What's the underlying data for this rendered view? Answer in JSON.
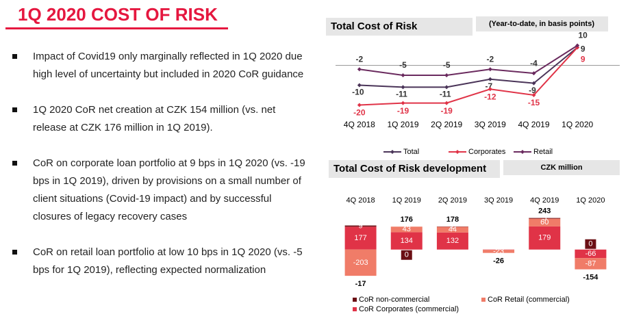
{
  "title": "1Q 2020 COST OF RISK",
  "bullets": [
    "Impact of Covid19 only marginally reflected in 1Q 2020 due high level of uncertainty but included in 2020 CoR guidance",
    "1Q 2020 CoR net creation at CZK 154 million (vs. net release at CZK 176 million in 1Q 2019).",
    "CoR on corporate loan portfolio at 9 bps in 1Q 2020 (vs. -19 bps in 1Q 2019), driven by provisions on a small number of client situations (Covid-19 impact) and by successful closures of legacy recovery cases",
    "CoR on retail loan portfolio at low 10 bps in 1Q 2020 (vs. -5 bps for 1Q 2019), reflecting expected normalization"
  ],
  "chart_data": [
    {
      "type": "line",
      "title": "Total Cost of Risk",
      "subtitle": "(Year-to-date, in basis points)",
      "categories": [
        "4Q 2018",
        "1Q 2019",
        "2Q 2019",
        "3Q 2019",
        "4Q 2019",
        "1Q 2020"
      ],
      "ylim": [
        -25,
        15
      ],
      "legend": "bottom",
      "series": [
        {
          "name": "Total",
          "color": "#4a3458",
          "values": [
            -10,
            -11,
            -11,
            -7,
            -9,
            9
          ]
        },
        {
          "name": "Corporates",
          "color": "#e03347",
          "values": [
            -20,
            -19,
            -19,
            -12,
            -15,
            9
          ]
        },
        {
          "name": "Retail",
          "color": "#6a2a5e",
          "values": [
            -2,
            -5,
            -5,
            -2,
            -4,
            10
          ]
        }
      ]
    },
    {
      "type": "stacked_bar",
      "title": "Total Cost of Risk development",
      "subtitle": "CZK million",
      "categories": [
        "4Q 2018",
        "1Q 2019",
        "2Q 2019",
        "3Q 2019",
        "4Q 2019",
        "1Q 2020"
      ],
      "ylim": [
        -250,
        300
      ],
      "legend": "bottom",
      "series": [
        {
          "name": "CoR Corporates (commercial)",
          "color": "#e03347",
          "values": [
            177,
            134,
            132,
            -3,
            179,
            -66
          ]
        },
        {
          "name": "CoR Retail (commercial)",
          "color": "#f07c68",
          "values": [
            -203,
            43,
            44,
            -23,
            60,
            -87
          ]
        },
        {
          "name": "CoR non-commercial",
          "color": "#6b0f14",
          "values": [
            9,
            0,
            2,
            null,
            5,
            0
          ]
        }
      ],
      "totals": [
        -17,
        176,
        178,
        -26,
        243,
        -154
      ]
    }
  ]
}
